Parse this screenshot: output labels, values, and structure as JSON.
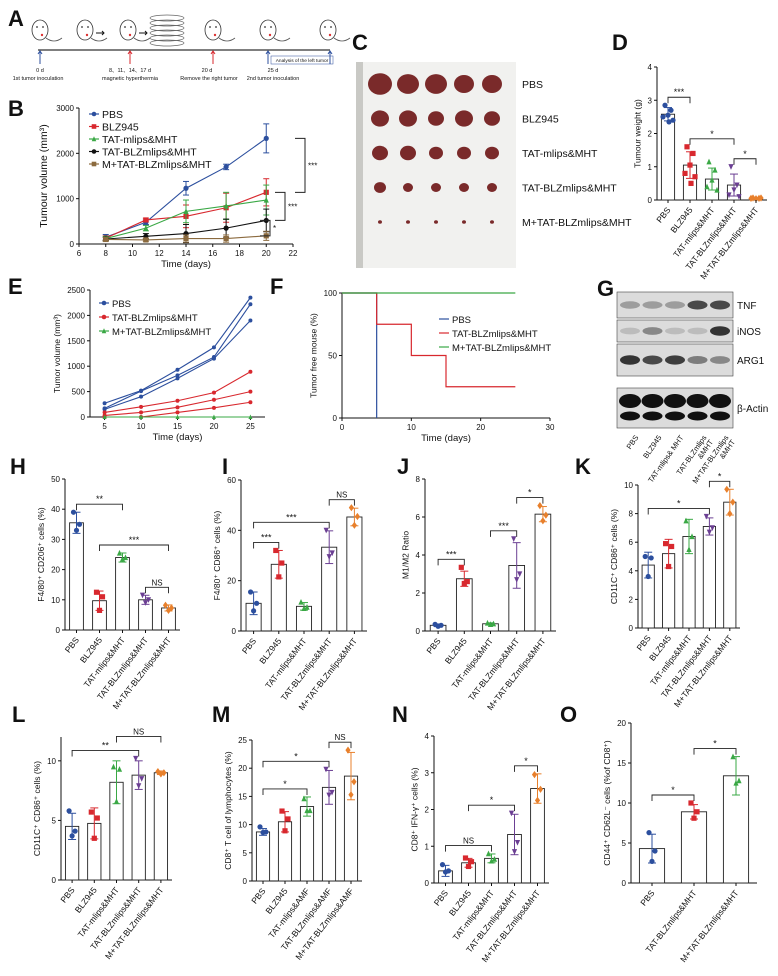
{
  "colors": {
    "PBS": "#2c4f9e",
    "BLZ945": "#d8282e",
    "TAT-mlips": "#3aa845",
    "TAT-BLZmlips": "#6b3f93",
    "M+TAT-BLZmlips": "#e8802c",
    "B_TAT-BLZmlips": "#111111",
    "B_M+TAT-BLZmlips": "#8b6a3e"
  },
  "panel_A": {
    "letter": "A",
    "events": [
      {
        "day": "0 d",
        "label": "1st tumor inoculation",
        "arrow_color": "#2c4f9e"
      },
      {
        "day": "8、11、14、17 d",
        "label": "magnetic hyperthermia",
        "arrow_color": "#d8282e"
      },
      {
        "day": "20 d",
        "label": "Remove the right tumor",
        "arrow_color": "#d8282e"
      },
      {
        "day": "25 d",
        "label": "2nd tumor inoculation",
        "arrow_color": "#2c4f9e"
      }
    ],
    "analysis_label": "Analysis of the left tumor"
  },
  "panel_C": {
    "letter": "C",
    "rows": [
      "PBS",
      "BLZ945",
      "TAT-mlips&MHT",
      "TAT-BLZmlips&MHT",
      "M+TAT-BLZmlips&MHT"
    ]
  },
  "panel_G": {
    "letter": "G",
    "lanes": [
      "PBS",
      "BLZ945",
      "TAT-mlips& MHT",
      "TAT-BLZmlips &MHT",
      "M+TAT-BLZmlips &MHT"
    ],
    "bands": [
      {
        "name": "TNF",
        "intensity": [
          0.35,
          0.35,
          0.35,
          0.75,
          0.75
        ]
      },
      {
        "name": "iNOS",
        "intensity": [
          0.2,
          0.45,
          0.2,
          0.2,
          0.85
        ]
      },
      {
        "name": "ARG1",
        "intensity": [
          0.85,
          0.75,
          0.8,
          0.5,
          0.45
        ]
      },
      {
        "name": "β-Actin",
        "intensity": [
          1,
          1,
          1,
          1,
          1
        ]
      }
    ]
  },
  "chart_data": [
    {
      "id": "B",
      "letter": "B",
      "type": "line",
      "xlabel": "Time (days)",
      "ylabel": "Tumour volume (mm³)",
      "xlim": [
        6,
        22
      ],
      "ylim": [
        0,
        3000
      ],
      "xticks": [
        6,
        8,
        10,
        12,
        14,
        16,
        18,
        20,
        22
      ],
      "yticks": [
        0,
        1000,
        2000,
        3000
      ],
      "legend": "top-left",
      "x": [
        8,
        11,
        14,
        17,
        20
      ],
      "series": [
        {
          "name": "PBS",
          "color": "#2c4f9e",
          "marker": "circle",
          "values": [
            150,
            480,
            1230,
            1700,
            2330
          ],
          "err": [
            60,
            50,
            150,
            60,
            320
          ]
        },
        {
          "name": "BLZ945",
          "color": "#d8282e",
          "marker": "square",
          "values": [
            130,
            530,
            610,
            800,
            1140
          ],
          "err": [
            50,
            40,
            250,
            320,
            300
          ]
        },
        {
          "name": "TAT-mlips&MHT",
          "color": "#3aa845",
          "marker": "triangle",
          "values": [
            120,
            350,
            720,
            840,
            970
          ],
          "err": [
            50,
            60,
            250,
            300,
            330
          ]
        },
        {
          "name": "TAT-BLZmlips&MHT",
          "color": "#111111",
          "marker": "circle",
          "values": [
            110,
            170,
            230,
            350,
            520
          ],
          "err": [
            40,
            60,
            200,
            200,
            250
          ]
        },
        {
          "name": "M+TAT-BLZmlips&MHT",
          "color": "#8b6a3e",
          "marker": "square",
          "values": [
            100,
            90,
            120,
            120,
            180
          ],
          "err": [
            40,
            30,
            80,
            80,
            100
          ]
        }
      ],
      "significance": [
        {
          "label": "***",
          "from": "PBS",
          "to": "BLZ945"
        },
        {
          "label": "***",
          "from": "BLZ945",
          "to": "TAT-BLZmlips&MHT"
        },
        {
          "label": "*",
          "from": "TAT-BLZmlips&MHT",
          "to": "M+TAT-BLZmlips&MHT"
        }
      ]
    },
    {
      "id": "D",
      "letter": "D",
      "type": "bar",
      "ylabel": "Tumour weight (g)",
      "ylim": [
        0,
        4
      ],
      "yticks": [
        0,
        1,
        2,
        3,
        4
      ],
      "categories": [
        "PBS",
        "BLZ945",
        "TAT-mlips&MHT",
        "TAT-BLZmlips&MHT",
        "M+TAT-BLZmlips&MHT"
      ],
      "values": [
        2.58,
        1.05,
        0.63,
        0.45,
        0.05
      ],
      "sd": [
        0.2,
        0.4,
        0.33,
        0.33,
        0.02
      ],
      "points": [
        [
          2.85,
          2.7,
          2.55,
          2.5,
          2.4,
          2.35
        ],
        [
          1.6,
          1.4,
          1.05,
          0.8,
          0.7,
          0.5
        ],
        [
          1.15,
          0.9,
          0.6,
          0.4,
          0.3
        ],
        [
          1.0,
          0.45,
          0.3,
          0.15,
          0.1
        ],
        [
          0.06,
          0.05,
          0.04,
          0.05,
          0.06
        ]
      ],
      "significance": [
        {
          "label": "***",
          "from": 0,
          "to": 1
        },
        {
          "label": "*",
          "from": 1,
          "to": 3
        },
        {
          "label": "*",
          "from": 3,
          "to": 4
        }
      ]
    },
    {
      "id": "E",
      "letter": "E",
      "type": "line",
      "xlabel": "Time (days)",
      "ylabel": "Tumor volume (mm³)",
      "xlim": [
        3,
        27
      ],
      "ylim": [
        0,
        2500
      ],
      "xticks": [
        5,
        10,
        15,
        20,
        25
      ],
      "yticks": [
        0,
        500,
        1000,
        1500,
        2000,
        2500
      ],
      "legend": "top-left",
      "x": [
        5,
        10,
        15,
        20,
        25
      ],
      "series": [
        {
          "name": "PBS",
          "color": "#2c4f9e",
          "marker": "circle",
          "individuals": [
            [
              270,
              520,
              930,
              1370,
              2350
            ],
            [
              150,
              400,
              760,
              1150,
              1900
            ],
            [
              170,
              510,
              820,
              1180,
              2220
            ]
          ]
        },
        {
          "name": "TAT-BLZmlips&MHT",
          "color": "#d8282e",
          "marker": "circle",
          "individuals": [
            [
              90,
              200,
              320,
              480,
              890
            ],
            [
              30,
              90,
              190,
              340,
              500
            ],
            [
              0,
              0,
              90,
              180,
              290
            ]
          ]
        },
        {
          "name": "M+TAT-BLZmlips&MHT",
          "color": "#3aa845",
          "marker": "triangle",
          "individuals": [
            [
              0,
              0,
              0,
              0,
              0
            ]
          ]
        }
      ]
    },
    {
      "id": "F",
      "letter": "F",
      "type": "line",
      "xlabel": "Time (days)",
      "ylabel": "Tumor free mouse (%)",
      "xlim": [
        0,
        30
      ],
      "ylim": [
        0,
        100
      ],
      "xticks": [
        0,
        10,
        20,
        30
      ],
      "yticks": [
        0,
        50,
        100
      ],
      "legend": "right",
      "step": true,
      "series": [
        {
          "name": "PBS",
          "color": "#2c4f9e",
          "x": [
            0,
            5,
            5
          ],
          "values": [
            100,
            100,
            0
          ]
        },
        {
          "name": "TAT-BLZmlips&MHT",
          "color": "#d8282e",
          "x": [
            0,
            5,
            5,
            10,
            10,
            15,
            15,
            25
          ],
          "values": [
            100,
            100,
            75,
            75,
            50,
            50,
            25,
            25
          ]
        },
        {
          "name": "M+TAT-BLZmlips&MHT",
          "color": "#3aa845",
          "x": [
            0,
            25
          ],
          "values": [
            100,
            100
          ]
        }
      ]
    },
    {
      "id": "H",
      "letter": "H",
      "type": "bar",
      "ylabel": "F4/80⁺ CD206⁺ cells  (%)",
      "ylim": [
        0,
        50
      ],
      "yticks": [
        0,
        10,
        20,
        30,
        40,
        50
      ],
      "categories": [
        "PBS",
        "BLZ945",
        "TAT-mlips&MHT",
        "TAT-BLZmlips&MHT",
        "M+TAT-BLZmlips&MHT"
      ],
      "values": [
        35.5,
        9.7,
        24,
        10,
        7.3
      ],
      "sd": [
        3.5,
        3.2,
        1.5,
        1.5,
        1
      ],
      "points": [
        [
          39,
          35,
          33
        ],
        [
          12.5,
          11,
          6.5
        ],
        [
          25.5,
          24,
          23.5
        ],
        [
          11.5,
          10,
          9
        ],
        [
          8.2,
          7.3,
          6.5
        ]
      ],
      "significance": [
        {
          "label": "**",
          "from": 0,
          "to": 2
        },
        {
          "label": "***",
          "from": 1,
          "to": 4
        },
        {
          "label": "NS",
          "from": 3,
          "to": 4
        }
      ]
    },
    {
      "id": "I",
      "letter": "I",
      "type": "bar",
      "ylabel": "F4/80⁺ CD86⁺ cells (%)",
      "ylim": [
        0,
        60
      ],
      "yticks": [
        0,
        20,
        40,
        60
      ],
      "categories": [
        "PBS",
        "BLZ945",
        "TAT-mlips&MHT",
        "TAT-BLZmlips&MHT",
        "M+TAT-BLZmlips&MHT"
      ],
      "values": [
        11,
        26.5,
        9.8,
        33.3,
        45.3
      ],
      "sd": [
        4.5,
        5.5,
        1.5,
        6.5,
        3.5
      ],
      "points": [
        [
          15.5,
          11,
          8
        ],
        [
          32,
          27,
          21.5
        ],
        [
          11.5,
          9.5,
          9
        ],
        [
          40,
          31,
          29.5
        ],
        [
          49,
          45.5,
          42
        ]
      ],
      "significance": [
        {
          "label": "***",
          "from": 0,
          "to": 1
        },
        {
          "label": "***",
          "from": 0,
          "to": 3
        },
        {
          "label": "NS",
          "from": 3,
          "to": 4
        }
      ]
    },
    {
      "id": "J",
      "letter": "J",
      "type": "bar",
      "ylabel": "M1/M2 Ratio",
      "ylim": [
        0,
        8
      ],
      "yticks": [
        0,
        2,
        4,
        6,
        8
      ],
      "categories": [
        "PBS",
        "BLZ945",
        "TAT-mlips&MHT",
        "TAT-BLZmlips&MHT",
        "M+TAT-BLZmlips&MHT"
      ],
      "values": [
        0.3,
        2.75,
        0.38,
        3.45,
        6.15
      ],
      "sd": [
        0.07,
        0.4,
        0.05,
        1.2,
        0.4
      ],
      "points": [
        [
          0.35,
          0.3,
          0.25
        ],
        [
          3.35,
          2.6,
          2.5
        ],
        [
          0.42,
          0.38,
          0.35
        ],
        [
          4.85,
          3.0,
          2.7
        ],
        [
          6.6,
          6.1,
          5.8
        ]
      ],
      "significance": [
        {
          "label": "***",
          "from": 0,
          "to": 1
        },
        {
          "label": "***",
          "from": 2,
          "to": 3
        },
        {
          "label": "*",
          "from": 3,
          "to": 4
        }
      ]
    },
    {
      "id": "K",
      "letter": "K",
      "type": "bar",
      "ylabel": "CD11C⁺ CD86⁺ cells (%)",
      "ylim": [
        0,
        10
      ],
      "yticks": [
        0,
        2,
        4,
        6,
        8,
        10
      ],
      "categories": [
        "PBS",
        "BLZ945",
        "TAT-mlips&MHT",
        "TAT-BLZmlips&MHT",
        "M+TAT-BLZmlips&MHT"
      ],
      "values": [
        4.4,
        5.2,
        6.4,
        7.1,
        8.8
      ],
      "sd": [
        0.9,
        1,
        1.2,
        0.6,
        0.9
      ],
      "points": [
        [
          5.0,
          4.9,
          3.6
        ],
        [
          5.9,
          5.7,
          4.3
        ],
        [
          7.5,
          6.4,
          5.5
        ],
        [
          7.8,
          7.0,
          6.7
        ],
        [
          9.7,
          8.8,
          8.0
        ]
      ],
      "significance": [
        {
          "label": "*",
          "from": 0,
          "to": 3
        },
        {
          "label": "*",
          "from": 3,
          "to": 4
        }
      ]
    },
    {
      "id": "L",
      "letter": "L",
      "type": "bar",
      "ylabel": "CD11C⁺ CD86⁺ cells (%)",
      "ylim": [
        0,
        12
      ],
      "yticks": [
        0,
        5,
        10
      ],
      "categories": [
        "PBS",
        "BLZ945",
        "TAT-mlips&MHT",
        "TAT-BLZmlips&MHT",
        "M+TAT-BLZmlips&MHT"
      ],
      "values": [
        4.5,
        4.75,
        8.2,
        8.8,
        9.0
      ],
      "sd": [
        1.1,
        1.3,
        1.8,
        1.2,
        0.15
      ],
      "points": [
        [
          5.8,
          4.1,
          3.7
        ],
        [
          5.7,
          5.2,
          3.5
        ],
        [
          9.5,
          9.3,
          6.6
        ],
        [
          10.2,
          8.5,
          7.9
        ],
        [
          9.1,
          9.0,
          8.9
        ]
      ],
      "significance": [
        {
          "label": "**",
          "from": 0,
          "to": 3
        },
        {
          "label": "NS",
          "from": 2,
          "to": 4
        }
      ]
    },
    {
      "id": "M",
      "letter": "M",
      "type": "bar",
      "ylabel": "CD8⁺ T cell of lymphocytes (%)",
      "ylim": [
        0,
        25
      ],
      "yticks": [
        0,
        5,
        10,
        15,
        20,
        25
      ],
      "categories": [
        "PBS",
        "BLZ945",
        "TAT-mlips&AMF",
        "TAT-BLZmlips&AMF",
        "M+TAT-BLZmlips&AMF"
      ],
      "values": [
        8.7,
        10.5,
        13.2,
        16.6,
        18.6
      ],
      "sd": [
        0.6,
        1.8,
        1.7,
        3,
        4.2
      ],
      "points": [
        [
          9.6,
          8.7,
          8.6
        ],
        [
          12.4,
          11,
          8.9
        ],
        [
          14.6,
          12.5,
          12.5
        ],
        [
          19.8,
          15.7,
          15.2
        ],
        [
          23.2,
          17.6,
          15.3
        ]
      ],
      "significance": [
        {
          "label": "*",
          "from": 0,
          "to": 2
        },
        {
          "label": "*",
          "from": 0,
          "to": 3
        },
        {
          "label": "NS",
          "from": 3,
          "to": 4
        }
      ]
    },
    {
      "id": "N",
      "letter": "N",
      "type": "bar",
      "ylabel": "CD8⁺ IFN-γ⁺ cells (%)",
      "ylim": [
        0,
        4
      ],
      "yticks": [
        0,
        1,
        2,
        3,
        4
      ],
      "categories": [
        "PBS",
        "BLZ945",
        "TAT-mlips&MHT",
        "TAT-BLZmlips&MHT",
        "M+TAT-BLZmlips&MHT"
      ],
      "values": [
        0.33,
        0.55,
        0.67,
        1.32,
        2.57
      ],
      "sd": [
        0.15,
        0.12,
        0.12,
        0.55,
        0.4
      ],
      "points": [
        [
          0.5,
          0.33,
          0.3
        ],
        [
          0.68,
          0.58,
          0.45
        ],
        [
          0.8,
          0.65,
          0.6
        ],
        [
          1.9,
          1.1,
          0.85
        ],
        [
          2.95,
          2.55,
          2.25
        ]
      ],
      "significance": [
        {
          "label": "NS",
          "from": 0,
          "to": 2
        },
        {
          "label": "*",
          "from": 1,
          "to": 3
        },
        {
          "label": "*",
          "from": 3,
          "to": 4
        }
      ]
    },
    {
      "id": "O",
      "letter": "O",
      "type": "bar",
      "ylabel": "CD44⁺ CD62L⁻ cells (%of CD8⁺)",
      "ylim": [
        0,
        20
      ],
      "yticks": [
        0,
        5,
        10,
        15,
        20
      ],
      "categories": [
        "PBS",
        "TAT-BLZmlips&MHT",
        "M+TAT-BLZmlips&MHT"
      ],
      "colors": [
        "#2c4f9e",
        "#d8282e",
        "#3aa845"
      ],
      "values": [
        4.3,
        8.9,
        13.4
      ],
      "sd": [
        1.8,
        0.9,
        2.4
      ],
      "points": [
        [
          6.3,
          4.0,
          2.7
        ],
        [
          10,
          8.9,
          8.1
        ],
        [
          15.8,
          12.8,
          12.5
        ]
      ],
      "significance": [
        {
          "label": "*",
          "from": 0,
          "to": 1
        },
        {
          "label": "*",
          "from": 1,
          "to": 2
        }
      ]
    }
  ]
}
